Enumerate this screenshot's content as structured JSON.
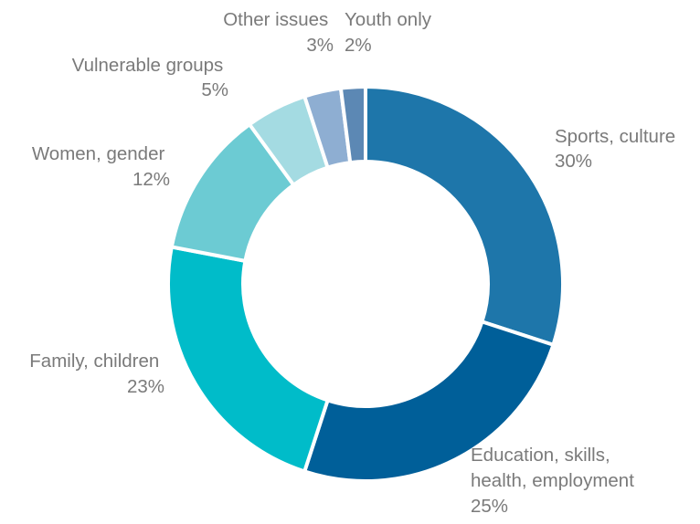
{
  "chart_data": {
    "type": "pie",
    "variant": "donut",
    "categories": [
      "Sports, culture",
      "Education, skills, health, employment",
      "Family, children",
      "Women, gender",
      "Vulnerable groups",
      "Other issues",
      "Youth only"
    ],
    "values": [
      30,
      25,
      23,
      12,
      5,
      3,
      2
    ],
    "value_labels": [
      "30%",
      "25%",
      "23%",
      "12%",
      "5%",
      "3%",
      "2%"
    ],
    "label_lines": [
      [
        "Sports, culture",
        "30%"
      ],
      [
        "Education, skills,",
        "health, employment",
        "25%"
      ],
      [
        "Family, children",
        "23%"
      ],
      [
        "Women, gender",
        "12%"
      ],
      [
        "Vulnerable groups",
        "5%"
      ],
      [
        "Other issues",
        "3%"
      ],
      [
        "Youth only",
        "2%"
      ]
    ],
    "colors": [
      "#1e76aa",
      "#005f99",
      "#00bcc9",
      "#6ccbd3",
      "#a4dbe2",
      "#8eaed2",
      "#5c88b4"
    ],
    "start_angle_deg": 0,
    "direction": "clockwise",
    "label_color": "#7a7a7a",
    "separator_color": "#ffffff"
  }
}
